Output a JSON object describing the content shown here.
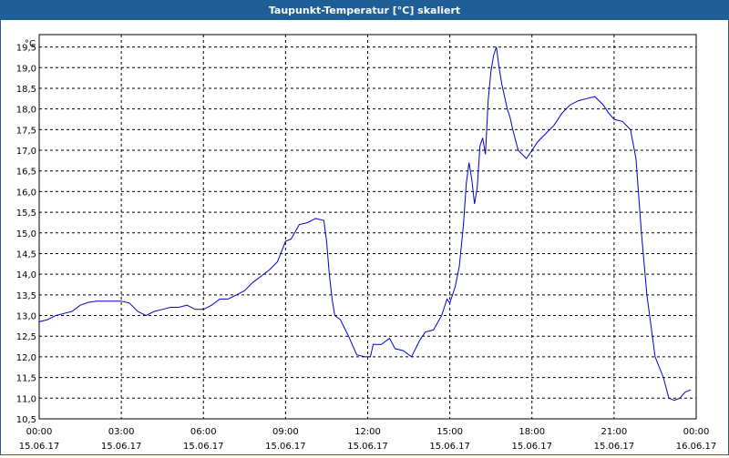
{
  "window": {
    "title": "Taupunkt-Temperatur [°C] skaliert"
  },
  "colors": {
    "titlebar": "#1f5e96",
    "line": "#0000cc",
    "grid": "#000000"
  },
  "chart_data": {
    "type": "line",
    "title": "Taupunkt-Temperatur [°C] skaliert",
    "ylabel": "°C",
    "ylim": [
      10.5,
      19.8
    ],
    "yticks": [
      10.5,
      11.0,
      11.5,
      12.0,
      12.5,
      13.0,
      13.5,
      14.0,
      14.5,
      15.0,
      15.5,
      16.0,
      16.5,
      17.0,
      17.5,
      18.0,
      18.5,
      19.0,
      19.5
    ],
    "ytick_labels": [
      "10,5",
      "11,0",
      "11,5",
      "12,0",
      "12,5",
      "13,0",
      "13,5",
      "14,0",
      "14,5",
      "15,0",
      "15,5",
      "16,0",
      "16,5",
      "17,0",
      "17,5",
      "18,0",
      "18,5",
      "19,0",
      "19,5"
    ],
    "xlim": [
      0,
      24
    ],
    "xticks": [
      0,
      3,
      6,
      9,
      12,
      15,
      18,
      21,
      24
    ],
    "xtick_time_labels": [
      "00:00",
      "03:00",
      "06:00",
      "09:00",
      "12:00",
      "15:00",
      "18:00",
      "21:00",
      "00:00"
    ],
    "xtick_date_labels": [
      "15.06.17",
      "15.06.17",
      "15.06.17",
      "15.06.17",
      "15.06.17",
      "15.06.17",
      "15.06.17",
      "15.06.17",
      "16.06.17"
    ],
    "grid": true,
    "series": [
      {
        "x": [
          0.0,
          0.3,
          0.6,
          0.9,
          1.2,
          1.5,
          1.8,
          2.1,
          2.4,
          2.7,
          3.0,
          3.3,
          3.6,
          3.9,
          4.2,
          4.5,
          4.8,
          5.1,
          5.4,
          5.7,
          6.0,
          6.3,
          6.6,
          6.9,
          7.2,
          7.5,
          7.8,
          8.1,
          8.4,
          8.7,
          9.0,
          9.2,
          9.5,
          9.8,
          10.1,
          10.4,
          10.5,
          10.6,
          10.7,
          10.8,
          11.0,
          11.3,
          11.6,
          11.9,
          12.1,
          12.2,
          12.5,
          12.8,
          13.0,
          13.3,
          13.6,
          13.9,
          14.1,
          14.4,
          14.7,
          14.9,
          15.0,
          15.2,
          15.35,
          15.5,
          15.6,
          15.7,
          15.8,
          15.9,
          16.0,
          16.1,
          16.2,
          16.3,
          16.4,
          16.5,
          16.6,
          16.7,
          16.8,
          16.9,
          17.0,
          17.1,
          17.2,
          17.3,
          17.5,
          17.8,
          18.0,
          18.2,
          18.5,
          18.8,
          19.1,
          19.4,
          19.7,
          20.0,
          20.3,
          20.6,
          20.8,
          21.0,
          21.3,
          21.6,
          21.8,
          22.0,
          22.2,
          22.5,
          22.8,
          23.0,
          23.2,
          23.4,
          23.6,
          23.8
        ],
        "y": [
          12.85,
          12.9,
          13.0,
          13.05,
          13.1,
          13.25,
          13.32,
          13.35,
          13.35,
          13.35,
          13.35,
          13.3,
          13.1,
          13.0,
          13.1,
          13.15,
          13.2,
          13.2,
          13.25,
          13.15,
          13.15,
          13.25,
          13.4,
          13.4,
          13.5,
          13.6,
          13.8,
          13.95,
          14.1,
          14.3,
          14.8,
          14.85,
          15.2,
          15.25,
          15.35,
          15.3,
          14.8,
          14.0,
          13.4,
          13.0,
          12.9,
          12.5,
          12.05,
          12.0,
          12.0,
          12.3,
          12.3,
          12.45,
          12.2,
          12.15,
          12.0,
          12.4,
          12.6,
          12.65,
          13.0,
          13.4,
          13.3,
          13.7,
          14.2,
          15.2,
          16.2,
          16.7,
          16.3,
          15.7,
          16.1,
          17.1,
          17.3,
          16.9,
          18.2,
          18.9,
          19.3,
          19.5,
          19.0,
          18.6,
          18.3,
          18.0,
          17.8,
          17.5,
          17.0,
          16.8,
          17.0,
          17.2,
          17.4,
          17.6,
          17.9,
          18.1,
          18.2,
          18.25,
          18.3,
          18.1,
          17.9,
          17.75,
          17.7,
          17.5,
          16.8,
          15.0,
          13.5,
          12.0,
          11.5,
          11.0,
          10.95,
          11.0,
          11.15,
          11.2
        ]
      }
    ]
  }
}
